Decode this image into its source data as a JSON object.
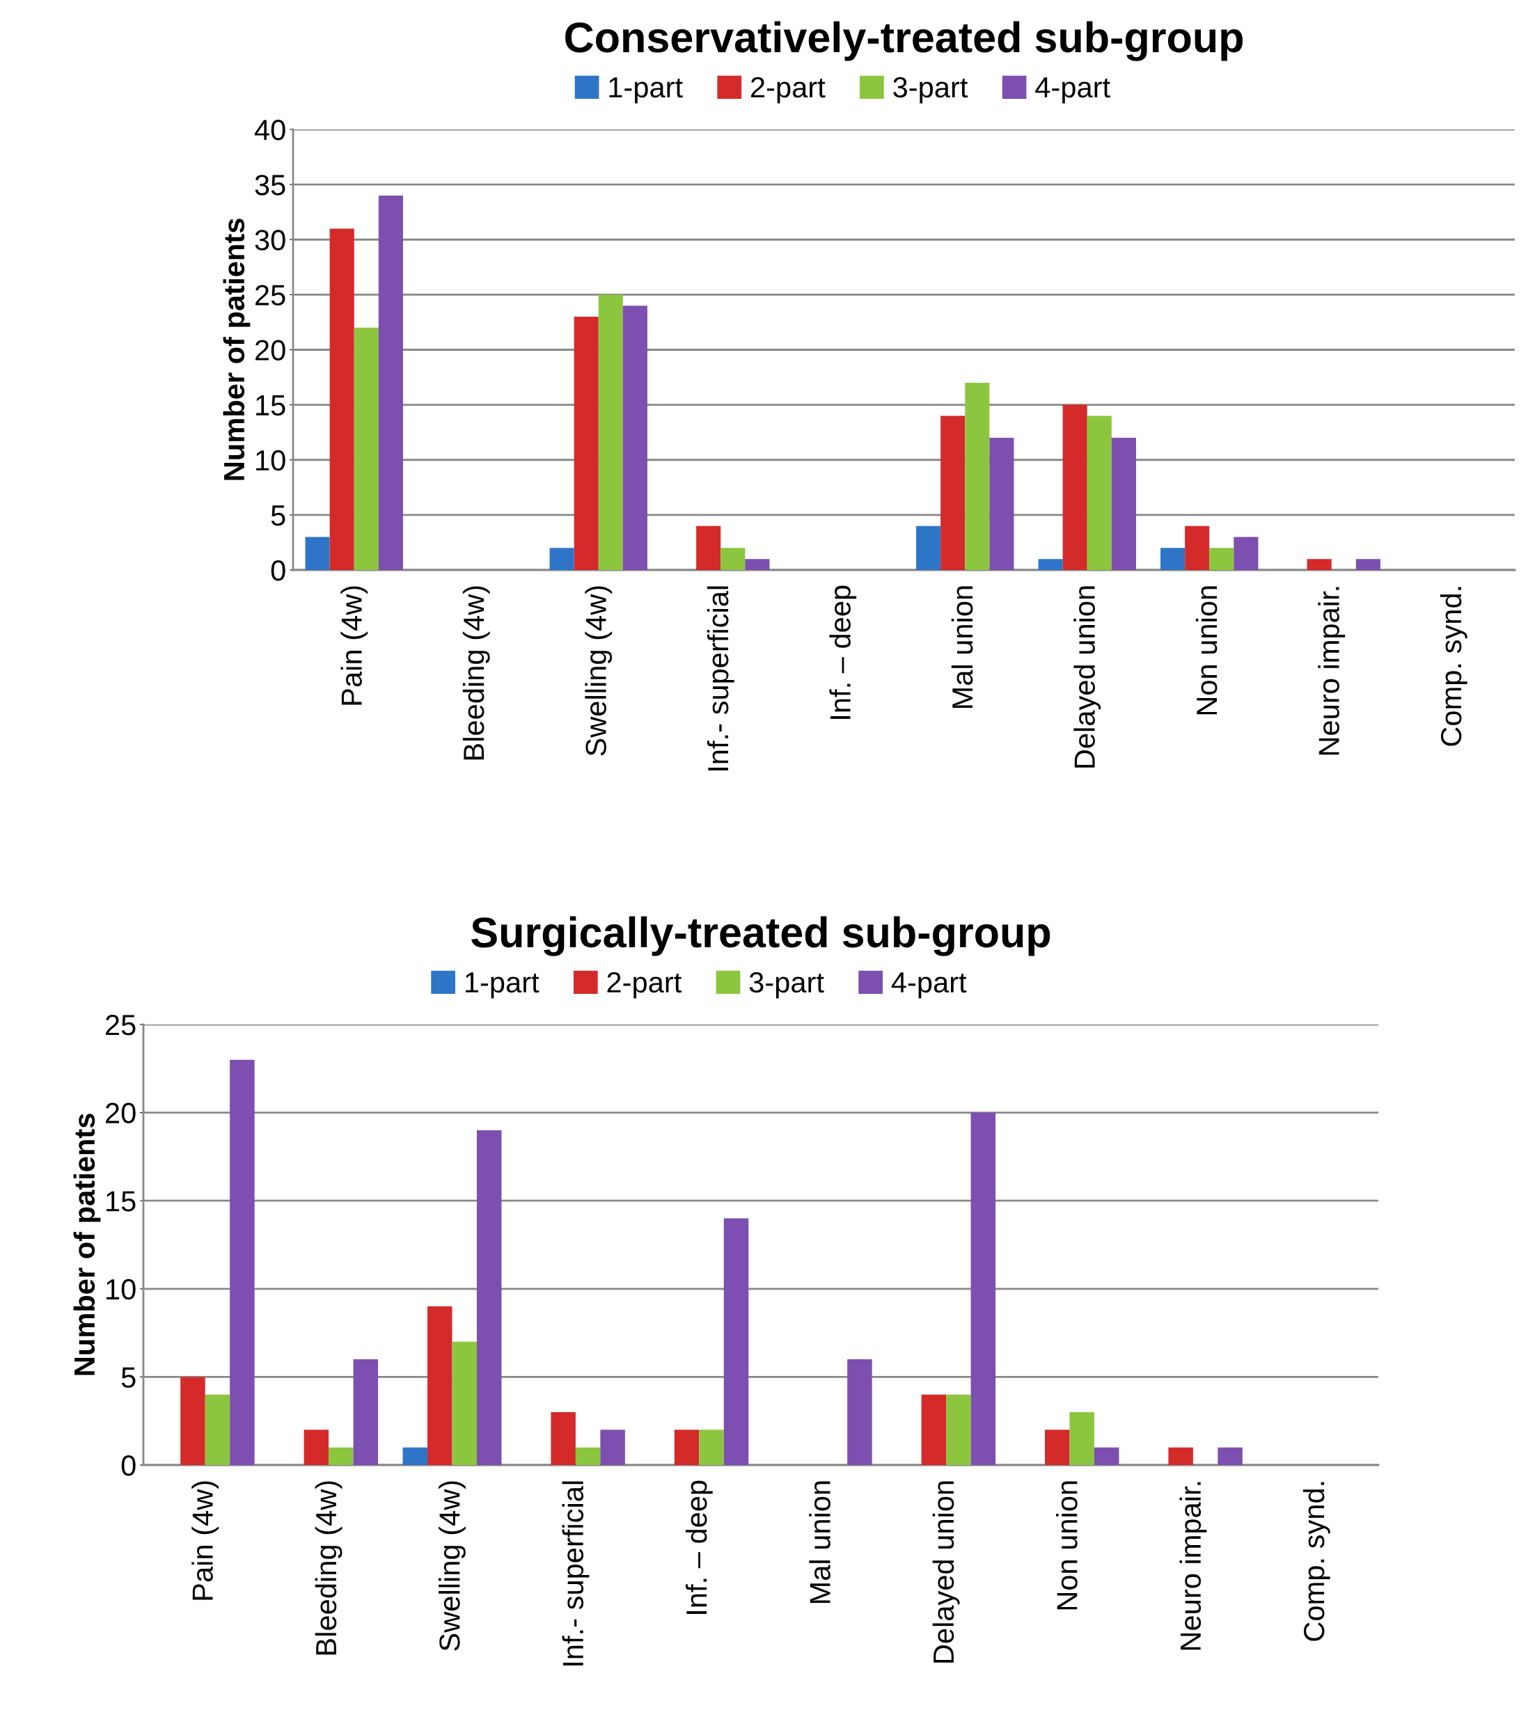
{
  "chart_data": [
    {
      "type": "bar",
      "title": "Conservatively-treated sub-group",
      "ylabel": "Number of patients",
      "categories": [
        "Pain (4w)",
        "Bleeding (4w)",
        "Swelling (4w)",
        "Inf.- superficial",
        "Inf. – deep",
        "Mal union",
        "Delayed union",
        "Non union",
        "Neuro impair.",
        "Comp. synd."
      ],
      "series": [
        {
          "name": "1-part",
          "color": "#2e75c8",
          "values": [
            3,
            0,
            2,
            0,
            0,
            4,
            1,
            2,
            0,
            0
          ]
        },
        {
          "name": "2-part",
          "color": "#d42a2a",
          "values": [
            31,
            0,
            23,
            4,
            0,
            14,
            15,
            4,
            1,
            0
          ]
        },
        {
          "name": "3-part",
          "color": "#8cc63f",
          "values": [
            22,
            0,
            25,
            2,
            0,
            17,
            14,
            2,
            0,
            0
          ]
        },
        {
          "name": "4-part",
          "color": "#7c4fb0",
          "values": [
            34,
            0,
            24,
            1,
            0,
            12,
            12,
            3,
            1,
            0
          ]
        }
      ],
      "ylim": [
        0,
        40
      ],
      "yticks": [
        0,
        5,
        10,
        15,
        20,
        25,
        30,
        35,
        40
      ],
      "grid": "y",
      "legend": "top"
    },
    {
      "type": "bar",
      "title": "Surgically-treated sub-group",
      "ylabel": "Number of patients",
      "categories": [
        "Pain (4w)",
        "Bleeding (4w)",
        "Swelling (4w)",
        "Inf.- superficial",
        "Inf. – deep",
        "Mal union",
        "Delayed union",
        "Non union",
        "Neuro impair.",
        "Comp. synd."
      ],
      "series": [
        {
          "name": "1-part",
          "color": "#2e75c8",
          "values": [
            0,
            0,
            1,
            0,
            0,
            0,
            0,
            0,
            0,
            0
          ]
        },
        {
          "name": "2-part",
          "color": "#d42a2a",
          "values": [
            5,
            2,
            9,
            3,
            2,
            0,
            4,
            2,
            1,
            0
          ]
        },
        {
          "name": "3-part",
          "color": "#8cc63f",
          "values": [
            4,
            1,
            7,
            1,
            2,
            0,
            4,
            3,
            0,
            0
          ]
        },
        {
          "name": "4-part",
          "color": "#7c4fb0",
          "values": [
            23,
            6,
            19,
            2,
            14,
            6,
            20,
            1,
            1,
            0
          ]
        }
      ],
      "ylim": [
        0,
        25
      ],
      "yticks": [
        0,
        5,
        10,
        15,
        20,
        25
      ],
      "grid": "y",
      "legend": "top"
    }
  ]
}
